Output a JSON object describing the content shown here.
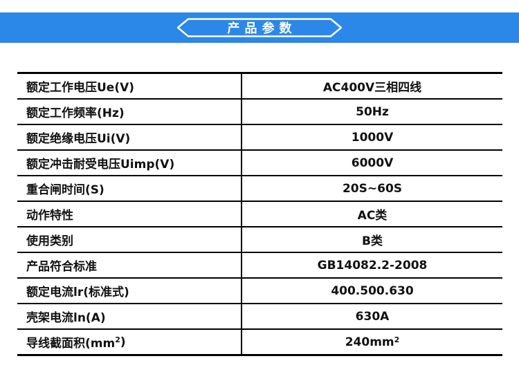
{
  "banner": {
    "title": "产品参数",
    "bg_color": "#2c88e8",
    "text_color": "#ffffff"
  },
  "table": {
    "border_color": "#000000",
    "rows": [
      {
        "label": "额定工作电压Ue(V)",
        "value": "AC400V三相四线"
      },
      {
        "label": "额定工作频率(Hz)",
        "value": "50Hz"
      },
      {
        "label": "额定绝缘电压Ui(V)",
        "value": "1000V"
      },
      {
        "label": "额定冲击耐受电压Uimp(V)",
        "value": "6000V"
      },
      {
        "label": "重合闸时间(S)",
        "value": "20S~60S"
      },
      {
        "label": "动作特性",
        "value": "AC类"
      },
      {
        "label": "使用类别",
        "value": "B类"
      },
      {
        "label": "产品符合标准",
        "value": "GB14082.2-2008"
      },
      {
        "label": "额定电流lr(标准式)",
        "value": "400.500.630"
      },
      {
        "label": "壳架电流ln(A)",
        "value": "630A"
      },
      {
        "label": "导线截面积(mm²)",
        "value": "240mm²"
      }
    ]
  }
}
